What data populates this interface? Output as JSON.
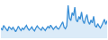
{
  "chart_data": {
    "type": "area",
    "color": "#3a8fd6",
    "ylim": [
      0,
      100
    ],
    "tick_labels": false,
    "grid": false,
    "values": [
      28,
      22,
      35,
      30,
      25,
      20,
      32,
      27,
      24,
      30,
      22,
      18,
      25,
      33,
      26,
      21,
      28,
      24,
      30,
      35,
      27,
      22,
      26,
      31,
      24,
      20,
      28,
      34,
      29,
      25,
      22,
      30,
      26,
      21,
      27,
      32,
      28,
      36,
      30,
      24,
      29,
      33,
      27,
      25,
      31,
      38,
      45,
      30,
      26,
      34,
      90,
      55,
      48,
      70,
      62,
      85,
      50,
      45,
      60,
      52,
      72,
      48,
      40,
      55,
      65,
      45,
      38,
      50,
      42,
      60,
      35,
      30,
      40,
      33,
      28,
      35,
      45,
      52,
      38,
      48
    ]
  }
}
